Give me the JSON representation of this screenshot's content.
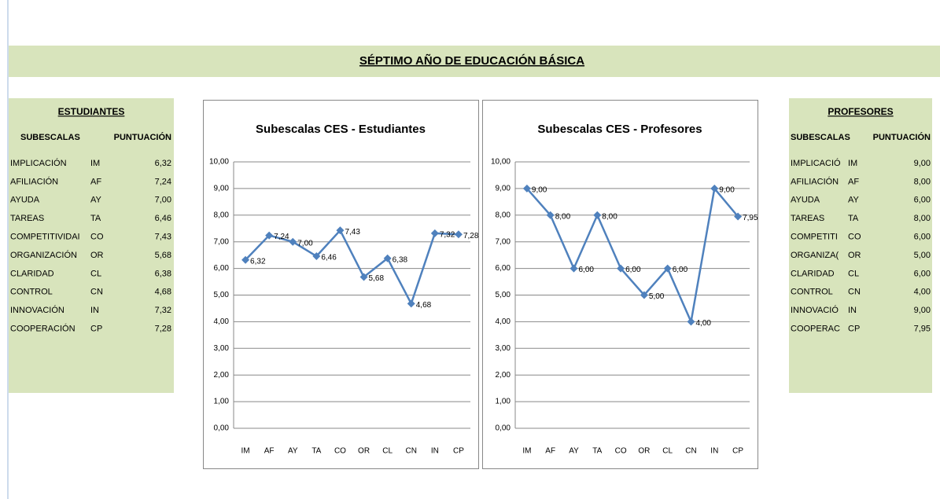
{
  "header": {
    "title": "SÉPTIMO AÑO DE EDUCACIÓN BÁSICA"
  },
  "tables": [
    {
      "title": "ESTUDIANTES",
      "headers": [
        "SUBESCALAS",
        "PUNTUACIÓN"
      ],
      "rows": [
        [
          "IMPLICACIÓN",
          "IM",
          "6,32"
        ],
        [
          "AFILIACIÓN",
          "AF",
          "7,24"
        ],
        [
          "AYUDA",
          "AY",
          "7,00"
        ],
        [
          "TAREAS",
          "TA",
          "6,46"
        ],
        [
          "COMPETITIVIDAI",
          "CO",
          "7,43"
        ],
        [
          "ORGANIZACIÓN",
          "OR",
          "5,68"
        ],
        [
          "CLARIDAD",
          "CL",
          "6,38"
        ],
        [
          "CONTROL",
          "CN",
          "4,68"
        ],
        [
          "INNOVACIÓN",
          "IN",
          "7,32"
        ],
        [
          "COOPERACIÓN",
          "CP",
          "7,28"
        ]
      ]
    },
    {
      "title": "PROFESORES",
      "headers": [
        "SUBESCALAS",
        "PUNTUACIÓN"
      ],
      "rows": [
        [
          "IMPLICACIÓ",
          "IM",
          "9,00"
        ],
        [
          "AFILIACIÓN",
          "AF",
          "8,00"
        ],
        [
          "AYUDA",
          "AY",
          "6,00"
        ],
        [
          "TAREAS",
          "TA",
          "8,00"
        ],
        [
          "COMPETITI",
          "CO",
          "6,00"
        ],
        [
          "ORGANIZA(",
          "OR",
          "5,00"
        ],
        [
          "CLARIDAD",
          "CL",
          "6,00"
        ],
        [
          "CONTROL",
          "CN",
          "4,00"
        ],
        [
          "INNOVACIÓ",
          "IN",
          "9,00"
        ],
        [
          "COOPERAC",
          "CP",
          "7,95"
        ]
      ]
    }
  ],
  "chart_data": [
    {
      "type": "line",
      "title": "Subescalas CES - Estudiantes",
      "categories": [
        "IM",
        "AF",
        "AY",
        "TA",
        "CO",
        "OR",
        "CL",
        "CN",
        "IN",
        "CP"
      ],
      "values": [
        6.32,
        7.24,
        7.0,
        6.46,
        7.43,
        5.68,
        6.38,
        4.68,
        7.32,
        7.28
      ],
      "value_labels": [
        "6,32",
        "7,24",
        "7,00",
        "6,46",
        "7,43",
        "5,68",
        "6,38",
        "4,68",
        "7,32",
        "7,28"
      ],
      "color": "#4f81bd",
      "ylim": [
        0,
        10
      ],
      "grid": true,
      "yticks": [
        {
          "value": 0,
          "label": "0,00"
        },
        {
          "value": 1,
          "label": "1,00"
        },
        {
          "value": 2,
          "label": "2,00"
        },
        {
          "value": 3,
          "label": "3,00"
        },
        {
          "value": 4,
          "label": "4,00"
        },
        {
          "value": 5,
          "label": "5,00"
        },
        {
          "value": 6,
          "label": "6,00"
        },
        {
          "value": 7,
          "label": "7,00"
        },
        {
          "value": 8,
          "label": "8,00"
        },
        {
          "value": 9,
          "label": "9,00"
        },
        {
          "value": 10,
          "label": "10,00"
        }
      ]
    },
    {
      "type": "line",
      "title": "Subescalas CES - Profesores",
      "categories": [
        "IM",
        "AF",
        "AY",
        "TA",
        "CO",
        "OR",
        "CL",
        "CN",
        "IN",
        "CP"
      ],
      "values": [
        9.0,
        8.0,
        6.0,
        8.0,
        6.0,
        5.0,
        6.0,
        4.0,
        9.0,
        7.95
      ],
      "value_labels": [
        "9,00",
        "8,00",
        "6,00",
        "8,00",
        "6,00",
        "5,00",
        "6,00",
        "4,00",
        "9,00",
        "7,95"
      ],
      "color": "#4f81bd",
      "ylim": [
        0,
        10
      ],
      "grid": true,
      "yticks": [
        {
          "value": 0,
          "label": "0,00"
        },
        {
          "value": 1,
          "label": "1,00"
        },
        {
          "value": 2,
          "label": "2,00"
        },
        {
          "value": 3,
          "label": "3,00"
        },
        {
          "value": 4,
          "label": "4,00"
        },
        {
          "value": 5,
          "label": "5,00"
        },
        {
          "value": 6,
          "label": "6,00"
        },
        {
          "value": 7,
          "label": "7,00"
        },
        {
          "value": 8,
          "label": "8,00"
        },
        {
          "value": 9,
          "label": "9,00"
        },
        {
          "value": 10,
          "label": "10,00"
        }
      ]
    }
  ]
}
